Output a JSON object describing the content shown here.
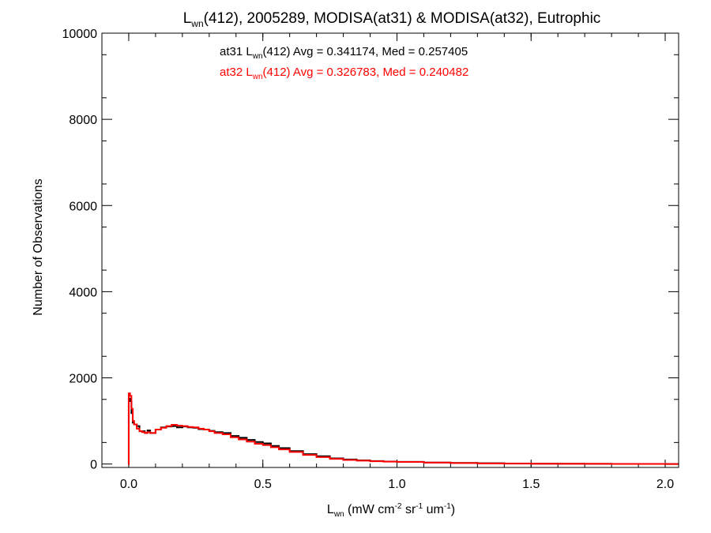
{
  "chart_data": {
    "type": "line",
    "title": {
      "prefix": "L",
      "sub": "wn",
      "rest": "(412), 2005289, MODISA(at31) & MODISA(at32), Eutrophic"
    },
    "ylabel": "Number of Observations",
    "xlabel": {
      "main": "L",
      "sub": "wn",
      "units_a": " (mW cm",
      "sup1": "-2",
      "units_b": " sr",
      "sup2": "-1",
      "units_c": " um",
      "sup3": "-1",
      "units_d": ")"
    },
    "xlim": [
      -0.1,
      2.05
    ],
    "ylim": [
      -80,
      10000
    ],
    "xticks": [
      {
        "v": 0.0,
        "label": "0.0"
      },
      {
        "v": 0.5,
        "label": "0.5"
      },
      {
        "v": 1.0,
        "label": "1.0"
      },
      {
        "v": 1.5,
        "label": "1.5"
      },
      {
        "v": 2.0,
        "label": "2.0"
      }
    ],
    "yticks": [
      {
        "v": 0,
        "label": "0"
      },
      {
        "v": 2000,
        "label": "2000"
      },
      {
        "v": 4000,
        "label": "4000"
      },
      {
        "v": 6000,
        "label": "6000"
      },
      {
        "v": 8000,
        "label": "8000"
      },
      {
        "v": 10000,
        "label": "10000"
      }
    ],
    "annotations": [
      {
        "color": "#000000",
        "pre": "at31 L",
        "sub": "wn",
        "post": "(412) Avg = 0.341174, Med = 0.257405"
      },
      {
        "color": "#ff0000",
        "pre": "at32 L",
        "sub": "wn",
        "post": "(412) Avg = 0.326783, Med = 0.240482"
      }
    ],
    "series": [
      {
        "color": "#000000",
        "x": [
          -0.002,
          0.0,
          0.005,
          0.01,
          0.015,
          0.02,
          0.03,
          0.04,
          0.05,
          0.06,
          0.07,
          0.08,
          0.1,
          0.12,
          0.14,
          0.16,
          0.18,
          0.2,
          0.22,
          0.24,
          0.26,
          0.28,
          0.3,
          0.32,
          0.35,
          0.38,
          0.41,
          0.44,
          0.47,
          0.5,
          0.53,
          0.56,
          0.6,
          0.65,
          0.7,
          0.75,
          0.8,
          0.85,
          0.9,
          0.95,
          1.0,
          1.1,
          1.2,
          1.3,
          1.4,
          1.5,
          1.6,
          1.7,
          1.8,
          1.9,
          2.0,
          2.05
        ],
        "y": [
          0,
          1520,
          1460,
          1180,
          960,
          920,
          880,
          760,
          760,
          720,
          780,
          720,
          800,
          850,
          870,
          880,
          850,
          870,
          850,
          840,
          810,
          800,
          770,
          740,
          720,
          650,
          610,
          560,
          510,
          480,
          420,
          370,
          300,
          230,
          180,
          130,
          105,
          85,
          70,
          58,
          50,
          35,
          25,
          18,
          12,
          8,
          6,
          4,
          3,
          2,
          1,
          1
        ]
      },
      {
        "color": "#ff0000",
        "x": [
          -0.002,
          0.0,
          0.005,
          0.01,
          0.015,
          0.02,
          0.03,
          0.04,
          0.05,
          0.06,
          0.07,
          0.08,
          0.1,
          0.12,
          0.14,
          0.16,
          0.18,
          0.2,
          0.22,
          0.24,
          0.26,
          0.28,
          0.3,
          0.32,
          0.35,
          0.38,
          0.41,
          0.44,
          0.47,
          0.5,
          0.53,
          0.56,
          0.6,
          0.65,
          0.7,
          0.75,
          0.8,
          0.85,
          0.9,
          0.95,
          1.0,
          1.1,
          1.2,
          1.3,
          1.4,
          1.5,
          1.6,
          1.7,
          1.8,
          1.9,
          2.0,
          2.05
        ],
        "y": [
          0,
          1640,
          1580,
          1280,
          1000,
          920,
          820,
          760,
          740,
          720,
          740,
          720,
          800,
          840,
          880,
          910,
          890,
          880,
          860,
          850,
          820,
          800,
          760,
          720,
          690,
          620,
          570,
          520,
          470,
          440,
          390,
          340,
          280,
          210,
          160,
          120,
          95,
          78,
          65,
          55,
          48,
          32,
          22,
          15,
          10,
          7,
          5,
          4,
          3,
          2,
          1,
          1
        ]
      }
    ]
  }
}
